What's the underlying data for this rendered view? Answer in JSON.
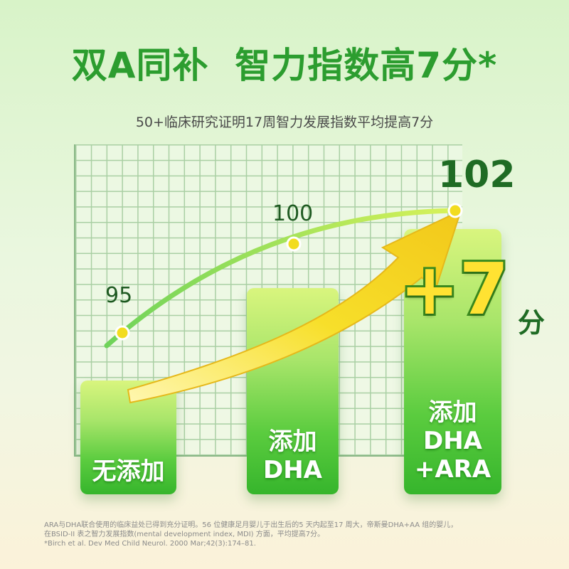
{
  "title": "双A同补  智力指数高7分*",
  "subtitle": "50+临床研究证明17周智力发展指数平均提高7分",
  "bars": [
    {
      "label": "无添加",
      "value": "95"
    },
    {
      "label": "添加\nDHA",
      "value": "100"
    },
    {
      "label": "添加\nDHA\n+ARA",
      "value": "102"
    }
  ],
  "highlight": {
    "text": "+7",
    "unit": "分"
  },
  "footnote": {
    "line1": "ARA与DHA联合使用的临床益处已得到充分证明。56 位健康足月婴儿于出生后的5 天内起至17 周大，帝斯曼DHA+AA 组的婴儿，",
    "line2": "在BSID-II 表之智力发展指数(mental development index, MDI) 方面，平均提高7分。",
    "line3": "*Birch et al. Dev Med Child Neurol. 2000 Mar;42(3):174–81."
  },
  "colors": {
    "title": "#2c9d2f",
    "bar_top": "#d9f57e",
    "bar_bottom": "#36b52c",
    "arrow": "#f5d81a",
    "dot": "#f2dc1f"
  }
}
